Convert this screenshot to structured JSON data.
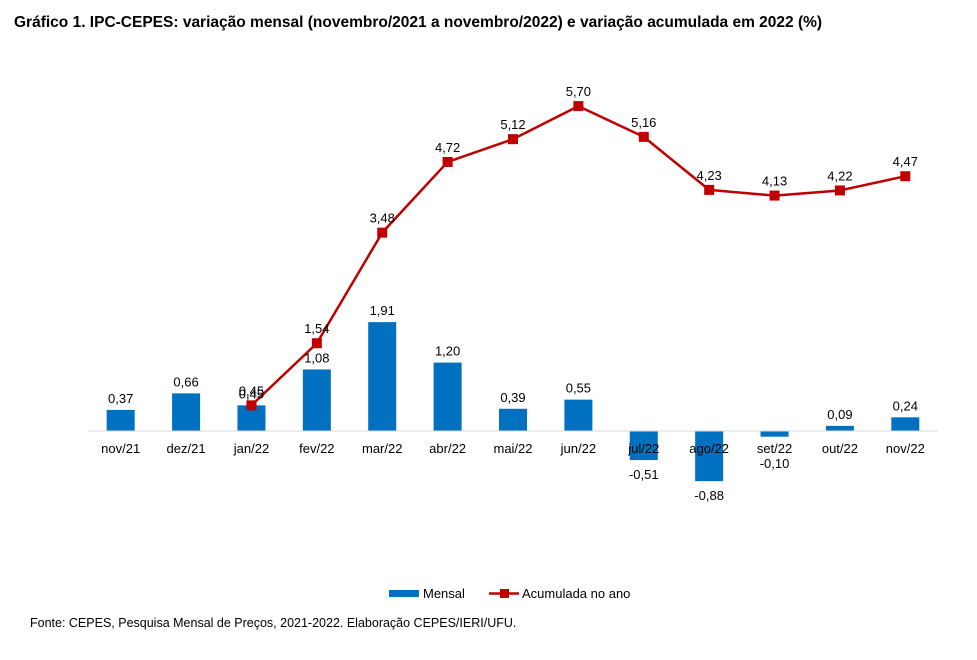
{
  "title": "Gráfico 1. IPC-CEPES: variação mensal (novembro/2021 a novembro/2022) e variação acumulada em 2022 (%)",
  "source": "Fonte: CEPES, Pesquisa Mensal de Preços, 2021-2022. Elaboração CEPES/IERI/UFU.",
  "colors": {
    "bar": "#0070C0",
    "line": "#C00000"
  },
  "chart_data": {
    "type": "bar+line",
    "title": "Gráfico 1. IPC-CEPES: variação mensal (novembro/2021 a novembro/2022) e variação acumulada em 2022 (%)",
    "categories": [
      "nov/21",
      "dez/21",
      "jan/22",
      "fev/22",
      "mar/22",
      "abr/22",
      "mai/22",
      "jun/22",
      "jul/22",
      "ago/22",
      "set/22",
      "out/22",
      "nov/22"
    ],
    "series": [
      {
        "name": "Mensal",
        "type": "bar",
        "values": [
          0.37,
          0.66,
          0.45,
          1.08,
          1.91,
          1.2,
          0.39,
          0.55,
          -0.51,
          -0.88,
          -0.1,
          0.09,
          0.24
        ],
        "labels": [
          "0,37",
          "0,66",
          "0,45",
          "1,08",
          "1,91",
          "1,20",
          "0,39",
          "0,55",
          "-0,51",
          "-0,88",
          "-0,10",
          "0,09",
          "0,24"
        ]
      },
      {
        "name": "Acumulada no ano",
        "type": "line",
        "values": [
          null,
          null,
          0.45,
          1.54,
          3.48,
          4.72,
          5.12,
          5.7,
          5.16,
          4.23,
          4.13,
          4.22,
          4.47
        ],
        "labels": [
          null,
          null,
          "0,45",
          "1,54",
          "3,48",
          "4,72",
          "5,12",
          "5,70",
          "5,16",
          "4,23",
          "4,13",
          "4,22",
          "4,47"
        ]
      }
    ],
    "legend": "bottom",
    "grid": false
  }
}
